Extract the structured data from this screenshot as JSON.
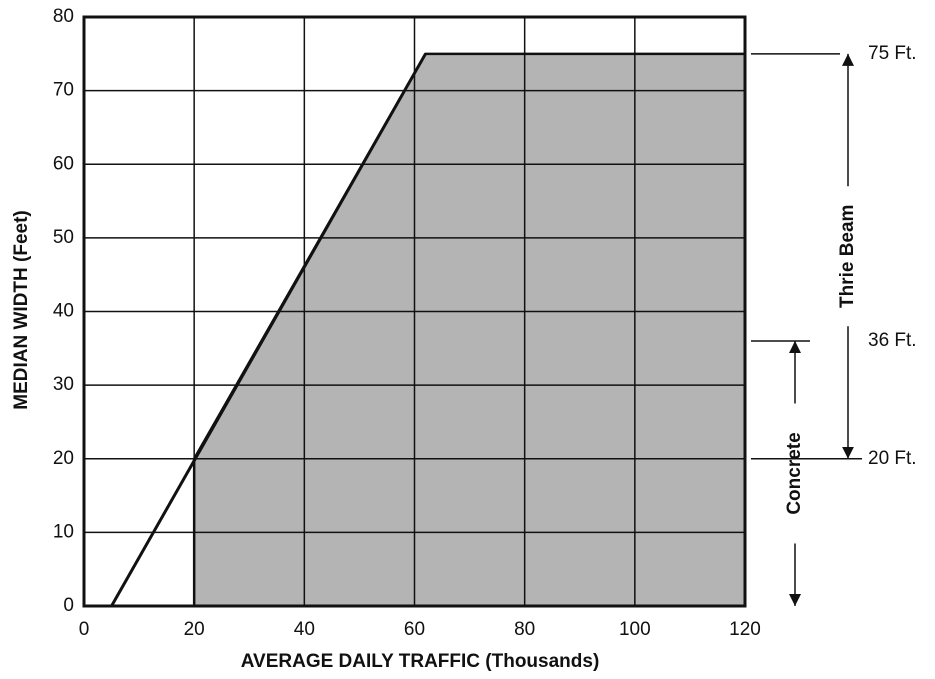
{
  "chart_data": {
    "type": "area",
    "x_label": "AVERAGE DAILY TRAFFIC (Thousands)",
    "y_label": "MEDIAN WIDTH (Feet)",
    "xlim": [
      0,
      120
    ],
    "xticks": [
      0,
      20,
      40,
      60,
      80,
      100,
      120
    ],
    "ylim": [
      0,
      80
    ],
    "yticks": [
      0,
      10,
      20,
      30,
      40,
      50,
      60,
      70,
      80
    ],
    "grid": true,
    "color": "#b4b4b4",
    "region": {
      "x": [
        20,
        20,
        62,
        120,
        120
      ],
      "y": [
        0,
        20,
        75,
        75,
        0
      ]
    },
    "line": {
      "x": [
        5,
        62
      ],
      "y": [
        0,
        75
      ]
    },
    "levels": [
      {
        "label": "75 Ft.",
        "value": 75
      },
      {
        "label": "36 Ft.",
        "value": 36
      },
      {
        "label": "20 Ft.",
        "value": 20
      }
    ],
    "ranges": [
      {
        "label": "Thrie Beam",
        "from": 20,
        "to": 75
      },
      {
        "label": "Concrete",
        "from": 0,
        "to": 36
      }
    ]
  }
}
